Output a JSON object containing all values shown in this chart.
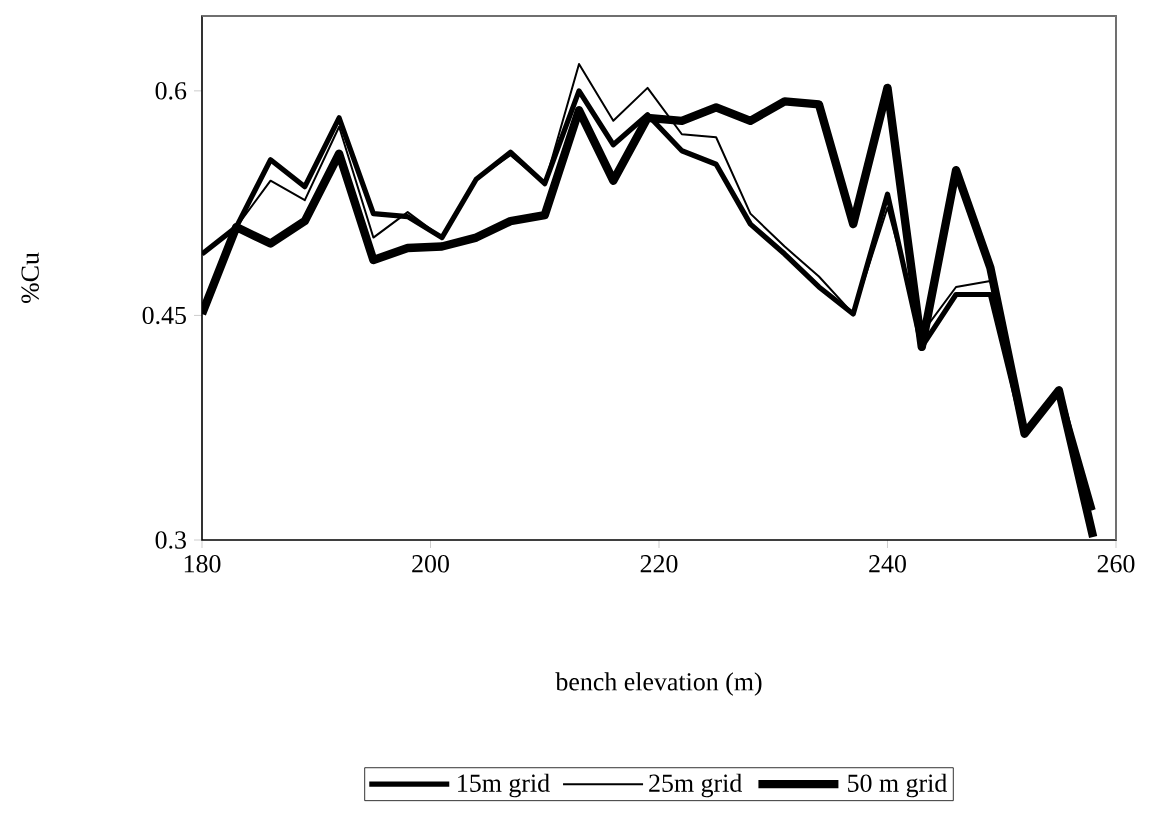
{
  "chart_data": {
    "type": "line",
    "xlabel": "bench elevation (m)",
    "ylabel": "%Cu",
    "x": [
      180,
      183,
      186,
      189,
      192,
      195,
      198,
      201,
      204,
      207,
      210,
      213,
      216,
      219,
      222,
      225,
      228,
      231,
      234,
      237,
      240,
      243,
      246,
      249,
      252,
      255,
      258
    ],
    "series": [
      {
        "name": "15m grid",
        "color": "#000000",
        "values": [
          0.491,
          0.509,
          0.554,
          0.536,
          0.582,
          0.518,
          0.516,
          0.502,
          0.541,
          0.559,
          0.538,
          0.6,
          0.564,
          0.584,
          0.56,
          0.551,
          0.511,
          0.491,
          0.469,
          0.451,
          0.531,
          0.429,
          0.464,
          0.464,
          0.371,
          0.4,
          0.32
        ]
      },
      {
        "name": "25m grid",
        "color": "#000000",
        "values": [
          0.491,
          0.509,
          0.54,
          0.527,
          0.576,
          0.502,
          0.519,
          0.502,
          0.541,
          0.557,
          0.538,
          0.618,
          0.58,
          0.602,
          0.571,
          0.569,
          0.518,
          0.496,
          0.476,
          0.451,
          0.522,
          0.438,
          0.469,
          0.473,
          0.371,
          0.4,
          0.32
        ]
      },
      {
        "name": "50 m grid",
        "color": "#000000",
        "values": [
          0.451,
          0.509,
          0.498,
          0.513,
          0.558,
          0.487,
          0.495,
          0.496,
          0.502,
          0.513,
          0.517,
          0.587,
          0.54,
          0.582,
          0.58,
          0.589,
          0.58,
          0.593,
          0.591,
          0.511,
          0.602,
          0.429,
          0.547,
          0.482,
          0.371,
          0.4,
          0.302
        ]
      }
    ],
    "xlim": [
      180,
      260
    ],
    "xticks": [
      180,
      200,
      220,
      240,
      260
    ],
    "ylim": [
      0.3,
      0.65
    ],
    "yticks": [
      0.3,
      0.45,
      0.6
    ],
    "grid": false,
    "legend": "bottom",
    "marker": "none",
    "line_style": "solid"
  }
}
